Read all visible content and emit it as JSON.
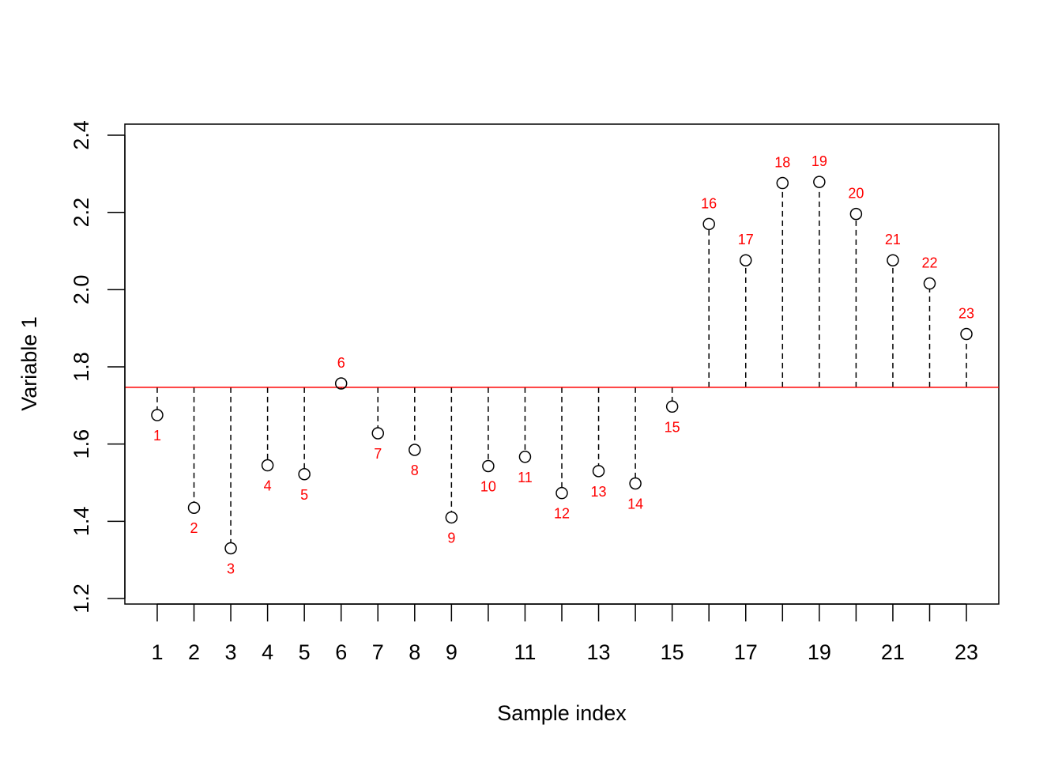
{
  "chart_data": {
    "type": "scatter",
    "title": "",
    "xlabel": "Sample index",
    "ylabel": "Variable 1",
    "x": [
      1,
      2,
      3,
      4,
      5,
      6,
      7,
      8,
      9,
      10,
      11,
      12,
      13,
      14,
      15,
      16,
      17,
      18,
      19,
      20,
      21,
      22,
      23
    ],
    "y": [
      1.675,
      1.435,
      1.33,
      1.545,
      1.522,
      1.757,
      1.628,
      1.585,
      1.41,
      1.543,
      1.567,
      1.473,
      1.53,
      1.498,
      1.697,
      2.17,
      2.076,
      2.276,
      2.279,
      2.196,
      2.076,
      2.016,
      1.885
    ],
    "point_labels": [
      "1",
      "2",
      "3",
      "4",
      "5",
      "6",
      "7",
      "8",
      "9",
      "10",
      "11",
      "12",
      "13",
      "14",
      "15",
      "16",
      "17",
      "18",
      "19",
      "20",
      "21",
      "22",
      "23"
    ],
    "reference_line": 1.747,
    "xlim": [
      0.12,
      23.88
    ],
    "ylim": [
      1.2,
      2.4
    ],
    "x_ticks": [
      1,
      2,
      3,
      4,
      5,
      6,
      7,
      8,
      9,
      10,
      11,
      12,
      13,
      14,
      15,
      16,
      17,
      18,
      19,
      20,
      21,
      22,
      23
    ],
    "x_tick_labels": [
      "1",
      "2",
      "3",
      "4",
      "5",
      "6",
      "7",
      "8",
      "9",
      "",
      "11",
      "",
      "13",
      "",
      "15",
      "",
      "17",
      "",
      "19",
      "",
      "21",
      "",
      "23"
    ],
    "y_ticks": [
      1.2,
      1.4,
      1.6,
      1.8,
      2.0,
      2.2,
      2.4
    ],
    "y_tick_labels": [
      "1.2",
      "1.4",
      "1.6",
      "1.8",
      "2.0",
      "2.2",
      "2.4"
    ],
    "grid": false,
    "colors": {
      "points": "#000000",
      "stems": "#000000",
      "reference_line": "#ff0000",
      "point_labels": "#ff0000",
      "axes": "#000000"
    }
  }
}
